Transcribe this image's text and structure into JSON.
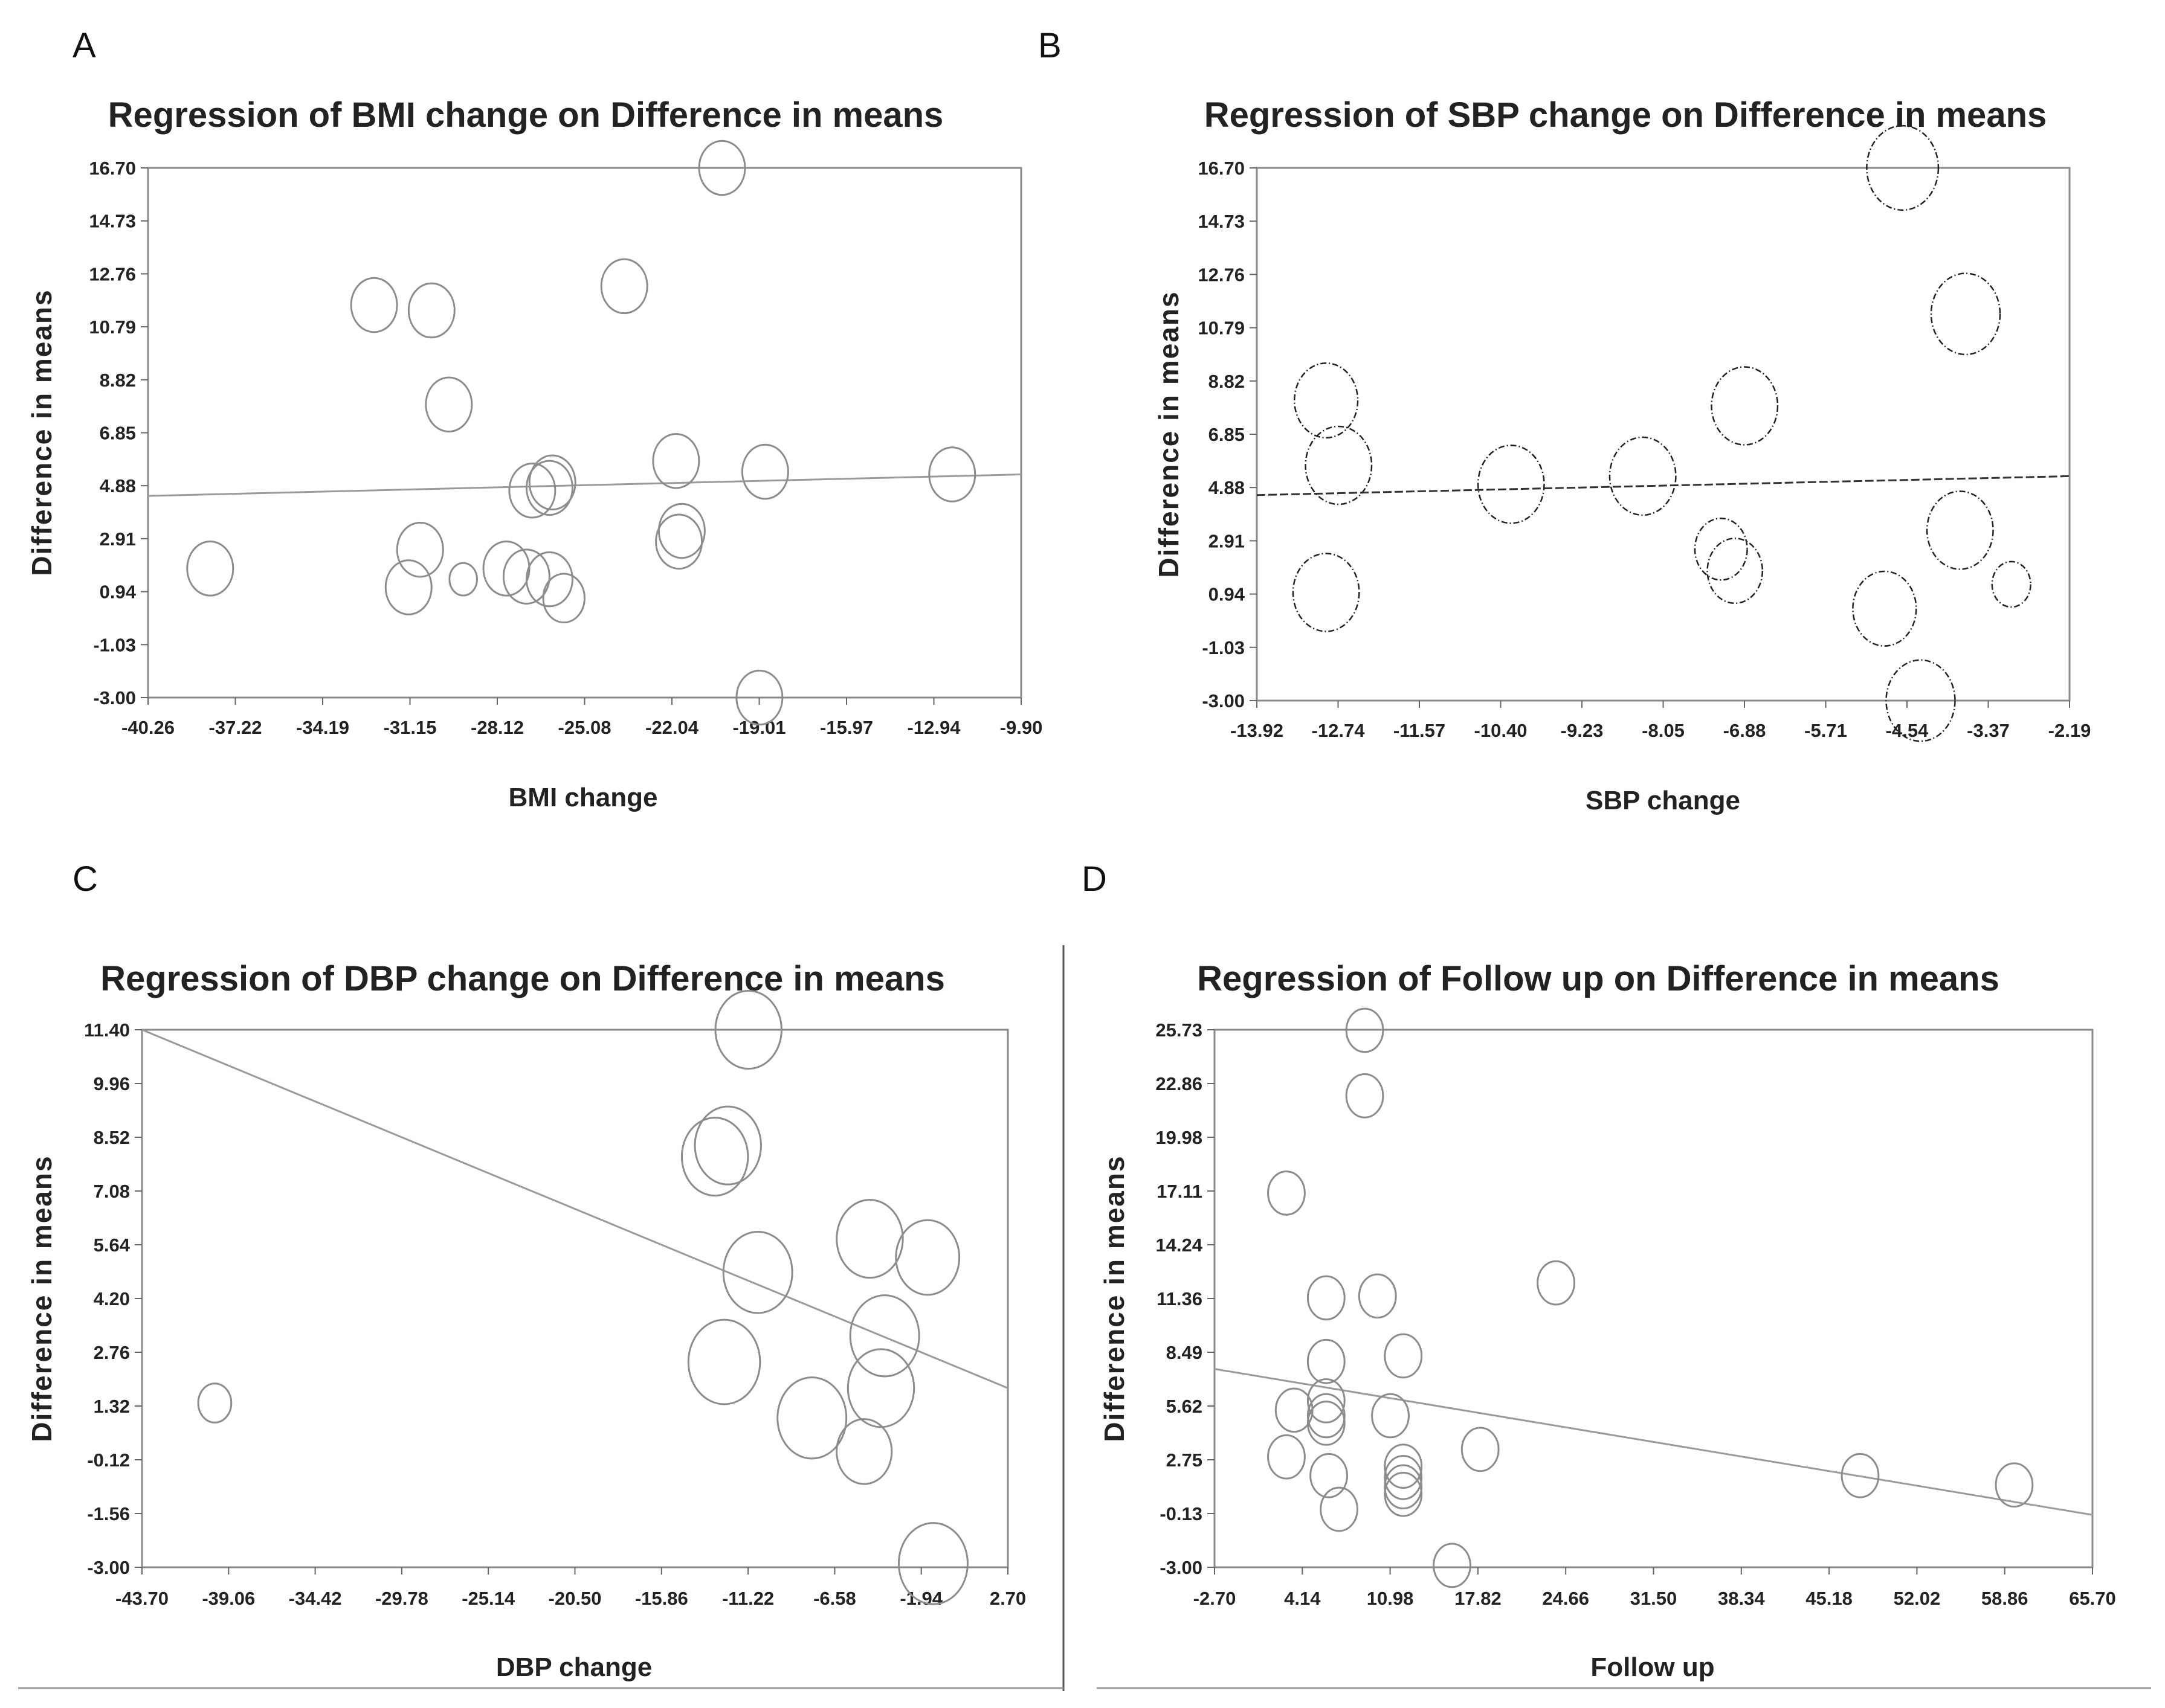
{
  "chart_data": [
    {
      "panel": "A",
      "type": "scatter",
      "title": "Regression of BMI change on Difference in means",
      "xlabel": "BMI change",
      "ylabel": "Difference in means",
      "xticks": [
        "-40.26",
        "-37.22",
        "-34.19",
        "-31.15",
        "-28.12",
        "-25.08",
        "-22.04",
        "-19.01",
        "-15.97",
        "-12.94",
        "-9.90"
      ],
      "yticks": [
        "16.70",
        "14.73",
        "12.76",
        "10.79",
        "8.82",
        "6.85",
        "4.88",
        "2.91",
        "0.94",
        "-1.03",
        "-3.00"
      ],
      "xlim": [
        -40.26,
        -9.9
      ],
      "ylim": [
        -3.0,
        16.7
      ],
      "style": "solid",
      "regression": [
        [
          -40.26,
          4.5
        ],
        [
          -9.9,
          5.3
        ]
      ],
      "points": [
        {
          "x": -38.1,
          "y": 1.8,
          "w": 1.0
        },
        {
          "x": -32.4,
          "y": 11.6,
          "w": 1.0
        },
        {
          "x": -30.4,
          "y": 11.4,
          "w": 1.0
        },
        {
          "x": -29.8,
          "y": 7.9,
          "w": 1.0
        },
        {
          "x": -30.8,
          "y": 2.5,
          "w": 1.0
        },
        {
          "x": -31.2,
          "y": 1.1,
          "w": 1.0
        },
        {
          "x": -29.3,
          "y": 1.4,
          "w": 0.6
        },
        {
          "x": -27.8,
          "y": 1.8,
          "w": 1.0
        },
        {
          "x": -27.1,
          "y": 1.5,
          "w": 1.0
        },
        {
          "x": -26.3,
          "y": 1.4,
          "w": 1.0
        },
        {
          "x": -25.8,
          "y": 0.7,
          "w": 0.9
        },
        {
          "x": -26.9,
          "y": 4.7,
          "w": 1.0
        },
        {
          "x": -26.3,
          "y": 4.8,
          "w": 1.0
        },
        {
          "x": -26.2,
          "y": 5.0,
          "w": 1.0
        },
        {
          "x": -23.7,
          "y": 12.3,
          "w": 1.0
        },
        {
          "x": -21.9,
          "y": 5.8,
          "w": 1.0
        },
        {
          "x": -21.8,
          "y": 2.8,
          "w": 1.0
        },
        {
          "x": -21.7,
          "y": 3.2,
          "w": 1.0
        },
        {
          "x": -20.3,
          "y": 16.7,
          "w": 1.0
        },
        {
          "x": -18.8,
          "y": 5.4,
          "w": 1.0
        },
        {
          "x": -19.0,
          "y": -3.0,
          "w": 1.0
        },
        {
          "x": -12.3,
          "y": 5.3,
          "w": 1.0
        }
      ]
    },
    {
      "panel": "B",
      "type": "scatter",
      "title": "Regression of SBP change on Difference in means",
      "xlabel": "SBP change",
      "ylabel": "Difference in means",
      "xticks": [
        "-13.92",
        "-12.74",
        "-11.57",
        "-10.40",
        "-9.23",
        "-8.05",
        "-6.88",
        "-5.71",
        "-4.54",
        "-3.37",
        "-2.19"
      ],
      "yticks": [
        "16.70",
        "14.73",
        "12.76",
        "10.79",
        "8.82",
        "6.85",
        "4.88",
        "2.91",
        "0.94",
        "-1.03",
        "-3.00"
      ],
      "xlim": [
        -13.92,
        -2.19
      ],
      "ylim": [
        -3.0,
        16.7
      ],
      "style": "dashed",
      "regression": [
        [
          -13.92,
          4.6
        ],
        [
          -2.19,
          5.3
        ]
      ],
      "points": [
        {
          "x": -12.92,
          "y": 8.1,
          "w": 1.15
        },
        {
          "x": -12.74,
          "y": 5.7,
          "w": 1.2
        },
        {
          "x": -12.92,
          "y": 1.0,
          "w": 1.2
        },
        {
          "x": -10.25,
          "y": 5.0,
          "w": 1.2
        },
        {
          "x": -8.35,
          "y": 5.3,
          "w": 1.2
        },
        {
          "x": -7.22,
          "y": 2.6,
          "w": 0.95
        },
        {
          "x": -7.02,
          "y": 1.8,
          "w": 1.0
        },
        {
          "x": -6.88,
          "y": 7.9,
          "w": 1.2
        },
        {
          "x": -4.86,
          "y": 0.4,
          "w": 1.15
        },
        {
          "x": -4.6,
          "y": 16.7,
          "w": 1.3
        },
        {
          "x": -3.69,
          "y": 11.3,
          "w": 1.25
        },
        {
          "x": -3.77,
          "y": 3.3,
          "w": 1.2
        },
        {
          "x": -3.03,
          "y": 1.3,
          "w": 0.7
        },
        {
          "x": -4.34,
          "y": -3.0,
          "w": 1.25
        }
      ]
    },
    {
      "panel": "C",
      "type": "scatter",
      "title": "Regression of DBP change on Difference in means",
      "xlabel": "DBP change",
      "ylabel": "Difference in means",
      "xticks": [
        "-43.70",
        "-39.06",
        "-34.42",
        "-29.78",
        "-25.14",
        "-20.50",
        "-15.86",
        "-11.22",
        "-6.58",
        "-1.94",
        "2.70"
      ],
      "yticks": [
        "11.40",
        "9.96",
        "8.52",
        "7.08",
        "5.64",
        "4.20",
        "2.76",
        "1.32",
        "-0.12",
        "-1.56",
        "-3.00"
      ],
      "xlim": [
        -43.7,
        2.7
      ],
      "ylim": [
        -3.0,
        11.4
      ],
      "style": "solid",
      "regression": [
        [
          -43.7,
          11.4
        ],
        [
          2.7,
          1.8
        ]
      ],
      "points": [
        {
          "x": -39.8,
          "y": 1.4,
          "w": 0.6
        },
        {
          "x": -11.2,
          "y": 11.4,
          "w": 1.2
        },
        {
          "x": -12.3,
          "y": 8.3,
          "w": 1.2
        },
        {
          "x": -13.0,
          "y": 8.0,
          "w": 1.2
        },
        {
          "x": -10.7,
          "y": 4.9,
          "w": 1.25
        },
        {
          "x": -12.5,
          "y": 2.5,
          "w": 1.3
        },
        {
          "x": -7.8,
          "y": 1.0,
          "w": 1.25
        },
        {
          "x": -4.7,
          "y": 5.8,
          "w": 1.2
        },
        {
          "x": -4.1,
          "y": 1.8,
          "w": 1.2
        },
        {
          "x": -3.9,
          "y": 3.2,
          "w": 1.25
        },
        {
          "x": -5.0,
          "y": 0.1,
          "w": 1.0
        },
        {
          "x": -1.6,
          "y": 5.3,
          "w": 1.15
        },
        {
          "x": -1.3,
          "y": -2.9,
          "w": 1.25
        }
      ]
    },
    {
      "panel": "D",
      "type": "scatter",
      "title": "Regression of Follow up on Difference in means",
      "xlabel": "Follow up",
      "ylabel": "Difference in means",
      "xticks": [
        "-2.70",
        "4.14",
        "10.98",
        "17.82",
        "24.66",
        "31.50",
        "38.34",
        "45.18",
        "52.02",
        "58.86",
        "65.70"
      ],
      "yticks": [
        "25.73",
        "22.86",
        "19.98",
        "17.11",
        "14.24",
        "11.36",
        "8.49",
        "5.62",
        "2.75",
        "-0.13",
        "-3.00"
      ],
      "xlim": [
        -2.7,
        65.7
      ],
      "ylim": [
        -3.0,
        25.73
      ],
      "style": "solid",
      "regression": [
        [
          -2.7,
          7.6
        ],
        [
          65.7,
          -0.2
        ]
      ],
      "points": [
        {
          "x": 2.9,
          "y": 17.0,
          "w": 1.0
        },
        {
          "x": 9.0,
          "y": 25.7,
          "w": 1.0
        },
        {
          "x": 9.0,
          "y": 22.2,
          "w": 1.0
        },
        {
          "x": 6.0,
          "y": 11.4,
          "w": 1.0
        },
        {
          "x": 10.0,
          "y": 11.5,
          "w": 1.0
        },
        {
          "x": 23.9,
          "y": 12.2,
          "w": 1.0
        },
        {
          "x": 6.0,
          "y": 8.0,
          "w": 1.0
        },
        {
          "x": 12.0,
          "y": 8.3,
          "w": 1.0
        },
        {
          "x": 3.5,
          "y": 5.4,
          "w": 1.0
        },
        {
          "x": 6.0,
          "y": 5.9,
          "w": 1.0
        },
        {
          "x": 6.0,
          "y": 5.1,
          "w": 1.0
        },
        {
          "x": 6.0,
          "y": 4.7,
          "w": 1.0
        },
        {
          "x": 11.0,
          "y": 5.1,
          "w": 1.0
        },
        {
          "x": 2.9,
          "y": 2.9,
          "w": 1.0
        },
        {
          "x": 6.2,
          "y": 1.9,
          "w": 1.0
        },
        {
          "x": 7.0,
          "y": 0.1,
          "w": 1.0
        },
        {
          "x": 12.0,
          "y": 2.4,
          "w": 1.0
        },
        {
          "x": 12.0,
          "y": 1.8,
          "w": 1.0
        },
        {
          "x": 12.0,
          "y": 1.3,
          "w": 1.0
        },
        {
          "x": 12.0,
          "y": 0.9,
          "w": 1.0
        },
        {
          "x": 18.0,
          "y": 3.3,
          "w": 1.0
        },
        {
          "x": 15.8,
          "y": -2.9,
          "w": 1.0
        },
        {
          "x": 47.6,
          "y": 1.9,
          "w": 1.0
        },
        {
          "x": 59.6,
          "y": 1.4,
          "w": 1.0
        }
      ]
    }
  ]
}
